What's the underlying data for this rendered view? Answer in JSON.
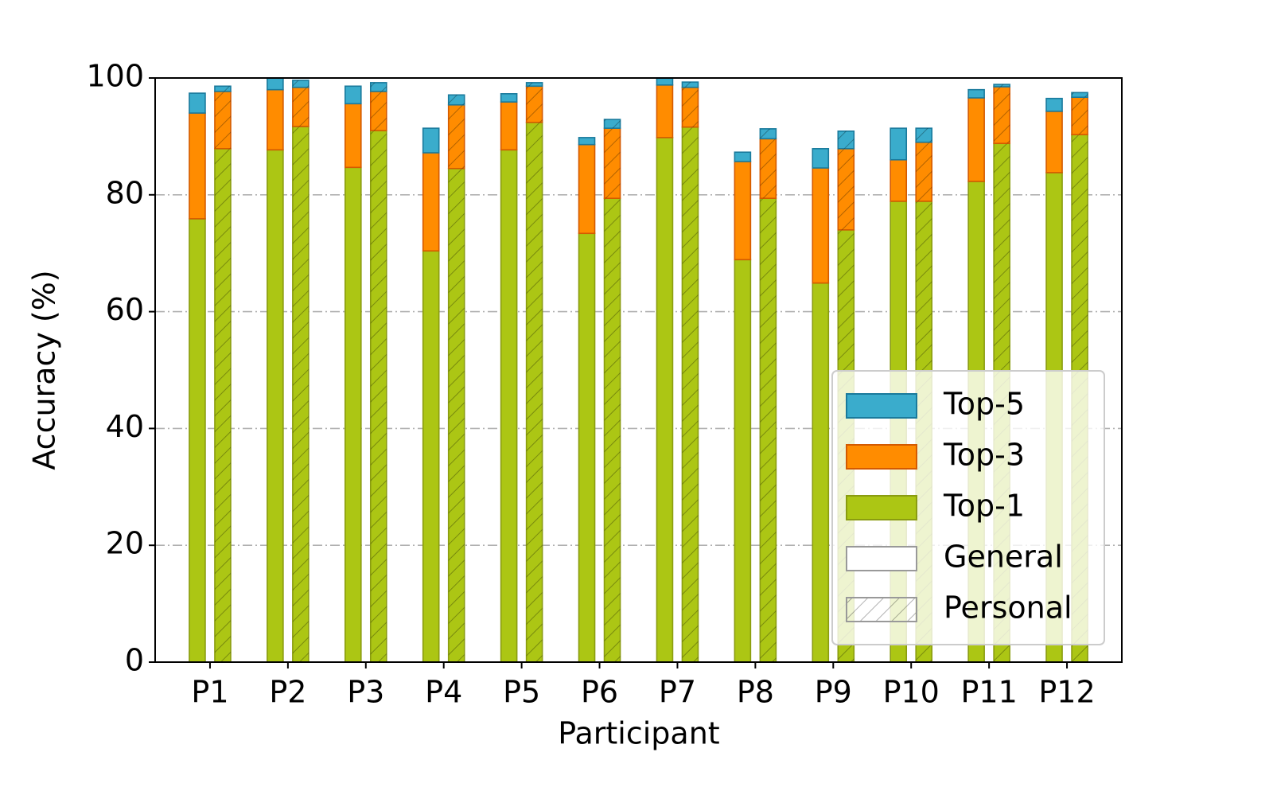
{
  "chart_data": {
    "type": "grouped-stacked-bar",
    "x_label": "Participant",
    "y_label": "Accuracy (%)",
    "categories": [
      "P1",
      "P2",
      "P3",
      "P4",
      "P5",
      "P6",
      "P7",
      "P8",
      "P9",
      "P10",
      "P11",
      "P12"
    ],
    "groups": [
      {
        "name": "General",
        "hatch": false
      },
      {
        "name": "Personal",
        "hatch": true
      }
    ],
    "series": [
      {
        "name": "Top-1",
        "color": "#acc614",
        "edge": "#8a9c10",
        "values": [
          [
            75.9,
            87.7,
            84.7,
            70.4,
            87.7,
            73.4,
            89.8,
            68.9,
            64.9,
            78.9,
            82.3,
            83.8
          ],
          [
            87.9,
            91.7,
            91.0,
            84.5,
            92.4,
            79.4,
            91.6,
            79.4,
            74.0,
            78.9,
            88.8,
            90.3
          ]
        ]
      },
      {
        "name": "Top-3",
        "color": "#ff8c00",
        "edge": "#d45a00",
        "values": [
          [
            18.1,
            10.3,
            10.9,
            16.8,
            8.2,
            15.2,
            9.0,
            16.8,
            19.7,
            7.1,
            14.3,
            10.5
          ],
          [
            9.8,
            6.7,
            6.7,
            10.9,
            6.2,
            12.0,
            6.8,
            10.2,
            13.9,
            10.1,
            9.7,
            6.4
          ]
        ]
      },
      {
        "name": "Top-5",
        "color": "#3aaccc",
        "edge": "#1a7a9c",
        "values": [
          [
            3.4,
            2.0,
            3.0,
            4.2,
            1.4,
            1.2,
            1.2,
            1.6,
            3.3,
            5.4,
            1.4,
            2.2
          ],
          [
            0.9,
            1.2,
            1.5,
            1.7,
            0.6,
            1.5,
            0.9,
            1.7,
            3.0,
            2.4,
            0.4,
            0.8
          ]
        ]
      }
    ],
    "ylim": [
      0,
      100
    ],
    "yticks": [
      0,
      20,
      40,
      60,
      80,
      100
    ],
    "grid": true,
    "legend": "lower right"
  }
}
